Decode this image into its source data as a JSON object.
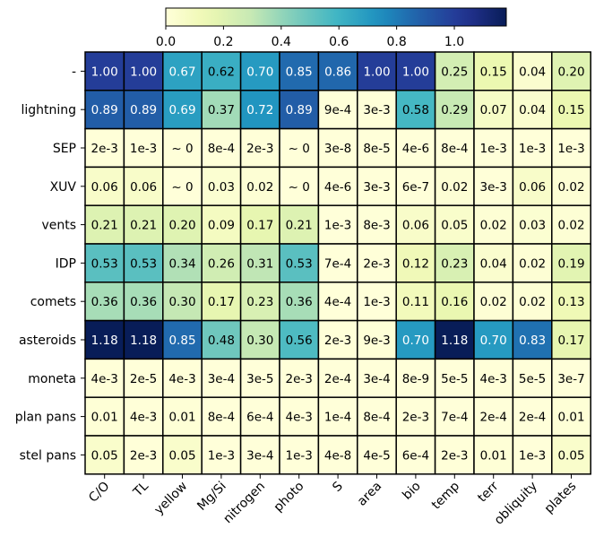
{
  "chart_data": {
    "type": "heatmap",
    "colormap": "YlGnBu",
    "colorbar": {
      "placement": "top",
      "range": [
        0,
        1.18
      ],
      "ticks": [
        "0.0",
        "0.2",
        "0.4",
        "0.6",
        "0.8",
        "1.0"
      ],
      "tick_values": [
        0.0,
        0.2,
        0.4,
        0.6,
        0.8,
        1.0
      ]
    },
    "columns": [
      "C/O",
      "TL",
      "yellow",
      "Mg/Si",
      "nitrogen",
      "photo",
      "S",
      "area",
      "bio",
      "temp",
      "terr",
      "obliquity",
      "plates"
    ],
    "rows": [
      "-",
      "lightning",
      "SEP",
      "XUV",
      "vents",
      "IDP",
      "comets",
      "asteroids",
      "moneta",
      "plan pans",
      "stel pans"
    ],
    "values": [
      [
        1.0,
        1.0,
        0.67,
        0.62,
        0.7,
        0.85,
        0.86,
        1.0,
        1.0,
        0.25,
        0.15,
        0.04,
        0.2
      ],
      [
        0.89,
        0.89,
        0.69,
        0.37,
        0.72,
        0.89,
        0.0009,
        0.003,
        0.58,
        0.29,
        0.07,
        0.04,
        0.15
      ],
      [
        0.002,
        0.001,
        0,
        0.0008,
        0.002,
        0,
        3e-08,
        8e-05,
        4e-06,
        0.0008,
        0.001,
        0.001,
        0.001
      ],
      [
        0.06,
        0.06,
        0,
        0.03,
        0.02,
        0,
        4e-06,
        0.003,
        6e-07,
        0.02,
        0.003,
        0.06,
        0.02
      ],
      [
        0.21,
        0.21,
        0.2,
        0.09,
        0.17,
        0.21,
        0.001,
        0.008,
        0.06,
        0.05,
        0.02,
        0.03,
        0.02
      ],
      [
        0.53,
        0.53,
        0.34,
        0.26,
        0.31,
        0.53,
        0.0007,
        0.002,
        0.12,
        0.23,
        0.04,
        0.02,
        0.19
      ],
      [
        0.36,
        0.36,
        0.3,
        0.17,
        0.23,
        0.36,
        0.0004,
        0.001,
        0.11,
        0.16,
        0.02,
        0.02,
        0.13
      ],
      [
        1.18,
        1.18,
        0.85,
        0.48,
        0.3,
        0.56,
        0.002,
        0.009,
        0.7,
        1.18,
        0.7,
        0.83,
        0.17
      ],
      [
        0.004,
        2e-05,
        0.004,
        0.0003,
        3e-05,
        0.002,
        0.0002,
        0.0003,
        8e-09,
        5e-05,
        0.004,
        5e-05,
        3e-07
      ],
      [
        0.01,
        0.004,
        0.01,
        0.0008,
        0.0006,
        0.004,
        0.0001,
        0.0008,
        0.002,
        0.0007,
        0.0002,
        0.0002,
        0.01
      ],
      [
        0.05,
        0.002,
        0.05,
        0.001,
        0.0003,
        0.001,
        4e-08,
        4e-05,
        0.0006,
        0.002,
        0.01,
        0.001,
        0.05
      ]
    ],
    "labels": [
      [
        "1.00",
        "1.00",
        "0.67",
        "0.62",
        "0.70",
        "0.85",
        "0.86",
        "1.00",
        "1.00",
        "0.25",
        "0.15",
        "0.04",
        "0.20"
      ],
      [
        "0.89",
        "0.89",
        "0.69",
        "0.37",
        "0.72",
        "0.89",
        "9e-4",
        "3e-3",
        "0.58",
        "0.29",
        "0.07",
        "0.04",
        "0.15"
      ],
      [
        "2e-3",
        "1e-3",
        "~ 0",
        "8e-4",
        "2e-3",
        "~ 0",
        "3e-8",
        "8e-5",
        "4e-6",
        "8e-4",
        "1e-3",
        "1e-3",
        "1e-3"
      ],
      [
        "0.06",
        "0.06",
        "~ 0",
        "0.03",
        "0.02",
        "~ 0",
        "4e-6",
        "3e-3",
        "6e-7",
        "0.02",
        "3e-3",
        "0.06",
        "0.02"
      ],
      [
        "0.21",
        "0.21",
        "0.20",
        "0.09",
        "0.17",
        "0.21",
        "1e-3",
        "8e-3",
        "0.06",
        "0.05",
        "0.02",
        "0.03",
        "0.02"
      ],
      [
        "0.53",
        "0.53",
        "0.34",
        "0.26",
        "0.31",
        "0.53",
        "7e-4",
        "2e-3",
        "0.12",
        "0.23",
        "0.04",
        "0.02",
        "0.19"
      ],
      [
        "0.36",
        "0.36",
        "0.30",
        "0.17",
        "0.23",
        "0.36",
        "4e-4",
        "1e-3",
        "0.11",
        "0.16",
        "0.02",
        "0.02",
        "0.13"
      ],
      [
        "1.18",
        "1.18",
        "0.85",
        "0.48",
        "0.30",
        "0.56",
        "2e-3",
        "9e-3",
        "0.70",
        "1.18",
        "0.70",
        "0.83",
        "0.17"
      ],
      [
        "4e-3",
        "2e-5",
        "4e-3",
        "3e-4",
        "3e-5",
        "2e-3",
        "2e-4",
        "3e-4",
        "8e-9",
        "5e-5",
        "4e-3",
        "5e-5",
        "3e-7"
      ],
      [
        "0.01",
        "4e-3",
        "0.01",
        "8e-4",
        "6e-4",
        "4e-3",
        "1e-4",
        "8e-4",
        "2e-3",
        "7e-4",
        "2e-4",
        "2e-4",
        "0.01"
      ],
      [
        "0.05",
        "2e-3",
        "0.05",
        "1e-3",
        "3e-4",
        "1e-3",
        "4e-8",
        "4e-5",
        "6e-4",
        "2e-3",
        "0.01",
        "1e-3",
        "0.05"
      ]
    ]
  }
}
